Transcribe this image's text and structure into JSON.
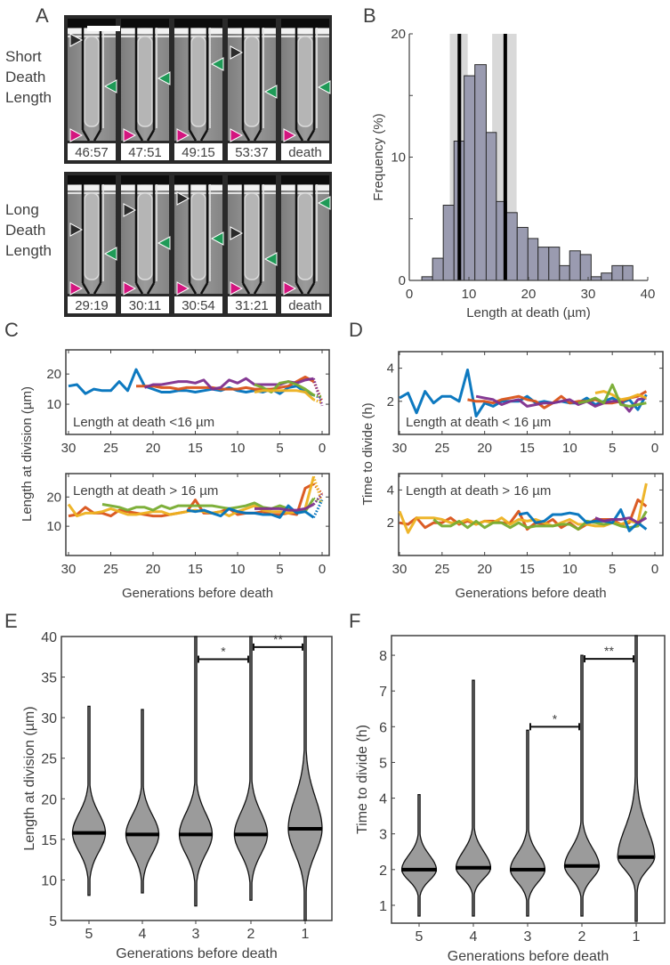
{
  "panel_labels": [
    "A",
    "B",
    "C",
    "D",
    "E",
    "F"
  ],
  "panel_a": {
    "rows": [
      {
        "label_lines": [
          "Short",
          "Death",
          "Length"
        ],
        "timestamps": [
          "46:57",
          "47:51",
          "49:15",
          "53:37",
          "death"
        ]
      },
      {
        "label_lines": [
          "Long",
          "Death",
          "Length"
        ],
        "timestamps": [
          "29:19",
          "30:11",
          "30:54",
          "31:21",
          "death"
        ]
      }
    ],
    "arrow_colors": {
      "black": "#2b2b2b",
      "green": "#1f9a57",
      "magenta": "#d4157f"
    }
  },
  "colors": {
    "blue": "#0072BD",
    "orange": "#D95319",
    "yellow": "#EDB120",
    "purple": "#7E2F8E",
    "green": "#77AC30",
    "bars": "#9a9bb0",
    "violin": "#9b9b9b",
    "band": "#d9d9d9"
  },
  "chart_data": [
    {
      "id": "B",
      "type": "bar",
      "xlabel": "Length at death (µm)",
      "ylabel": "Frequency (%)",
      "xlim": [
        0,
        40
      ],
      "ylim": [
        0,
        20
      ],
      "xticks": [
        "0",
        "10",
        "20",
        "30",
        "40"
      ],
      "yticks": [
        "0",
        "10",
        "20"
      ],
      "bin_edges": [
        2.1,
        3.9,
        5.7,
        7.5,
        9.2,
        11.0,
        12.9,
        14.6,
        16.3,
        18.1,
        19.9,
        21.6,
        23.4,
        25.2,
        26.9,
        28.7,
        30.5,
        32.2,
        34.0,
        35.8,
        37.5
      ],
      "values": [
        0.3,
        1.8,
        6.1,
        11.3,
        16.6,
        17.5,
        12.0,
        6.4,
        5.5,
        4.3,
        3.4,
        2.7,
        2.7,
        1.2,
        2.4,
        2.1,
        0.3,
        0.6,
        1.2,
        1.2
      ],
      "vertical_lines": [
        8.4,
        16.1
      ],
      "shaded_bands": [
        [
          6.8,
          9.8
        ],
        [
          13.9,
          18.0
        ]
      ],
      "grid": false
    },
    {
      "id": "C-top",
      "type": "line",
      "annotation": "Length at death <16 µm",
      "xlim": [
        30,
        0
      ],
      "ylim": [
        0,
        28
      ],
      "xticks": [
        "30",
        "25",
        "20",
        "15",
        "10",
        "5",
        "0"
      ],
      "yticks": [
        "10",
        "20"
      ],
      "series": [
        {
          "color": "blue",
          "x_start": 30,
          "values": [
            16,
            16.5,
            13.5,
            15,
            14.5,
            14.5,
            17.5,
            14.5,
            21.5,
            16,
            15,
            14,
            14,
            14.5,
            14.5,
            14,
            14.5,
            15,
            14.5,
            15.5,
            14.5,
            14,
            14.5,
            14,
            15,
            13.5,
            15.5,
            16,
            14,
            13
          ],
          "dotted_end": 12
        },
        {
          "color": "orange",
          "x_start": 22,
          "values": [
            16,
            16,
            16,
            15.5,
            15.5,
            15,
            15.5,
            15.5,
            15.5,
            15.5,
            15,
            15,
            15,
            15.5,
            15,
            15,
            15,
            15.5,
            16,
            17.5,
            19,
            17.5
          ],
          "dotted_end": 11
        },
        {
          "color": "purple",
          "x_start": 21,
          "values": [
            15.5,
            16.5,
            16.5,
            17,
            17.5,
            17.5,
            17,
            18,
            15,
            15.5,
            18,
            17,
            18.5,
            16.5,
            16.5,
            16.5,
            16.5,
            17.5,
            17,
            18,
            18.5
          ],
          "dotted_end": 9.5
        },
        {
          "color": "green",
          "x_start": 8,
          "values": [
            16.5,
            15.5,
            14,
            17,
            17.5,
            16.5,
            15,
            13
          ],
          "dotted_end": 12.5
        },
        {
          "color": "yellow",
          "x_start": 8,
          "values": [
            14,
            14.5,
            14.5,
            14.5,
            14.5,
            14.5,
            14,
            11.5
          ],
          "dotted_end": 10.5
        }
      ]
    },
    {
      "id": "C-bottom",
      "type": "line",
      "annotation": "Length at death > 16 µm",
      "xlabel": "Generations before death",
      "ylabel": "Length at division (µm)",
      "xlim": [
        30,
        0
      ],
      "ylim": [
        0,
        28
      ],
      "xticks": [
        "30",
        "25",
        "20",
        "15",
        "10",
        "5",
        "0"
      ],
      "yticks": [
        "10",
        "20"
      ],
      "series": [
        {
          "color": "orange",
          "x_start": 30,
          "values": [
            13.5,
            14,
            16.5,
            14.5,
            14.5,
            13.5,
            15.5,
            15,
            14.5,
            14,
            13.5,
            13.5,
            14,
            14.5,
            15,
            19,
            14.5,
            14.5,
            15,
            16,
            14,
            14.5,
            14.5,
            15,
            14,
            14,
            14.5,
            14,
            23,
            24.5
          ],
          "dotted_end": 21
        },
        {
          "color": "yellow",
          "x_start": 30,
          "values": [
            17.5,
            13.5,
            14.5,
            14.5,
            15,
            16,
            15,
            14,
            14,
            14.5,
            15,
            15,
            14,
            14.5,
            15,
            15.5,
            15,
            14.5,
            15,
            13.5,
            15,
            16,
            17,
            15.5,
            15,
            15,
            14.5,
            15,
            16,
            27
          ],
          "dotted_end": 18
        },
        {
          "color": "green",
          "x_start": 26,
          "values": [
            17.5,
            17,
            16.5,
            15.5,
            16.5,
            16.5,
            15.5,
            17,
            16,
            17,
            17,
            17,
            17,
            17,
            16.5,
            16,
            16.5,
            17,
            18,
            16.5,
            16,
            17,
            16,
            15,
            15,
            19.5
          ],
          "dotted_end": 18
        },
        {
          "color": "blue",
          "x_start": 16,
          "values": [
            15.5,
            15,
            15.5,
            14.5,
            13.5,
            16,
            15,
            14.5,
            14.5,
            14,
            14,
            13,
            17,
            14.5,
            15,
            13
          ],
          "dotted_end": 19
        },
        {
          "color": "purple",
          "x_start": 8,
          "values": [
            16,
            16,
            16,
            16,
            15.5,
            15.5,
            16,
            17.5
          ],
          "dotted_end": 21
        }
      ]
    },
    {
      "id": "D-top",
      "type": "line",
      "annotation": "Length at death < 16 µm",
      "xlim": [
        30,
        0
      ],
      "ylim": [
        0,
        5
      ],
      "xticks": [
        "30",
        "25",
        "20",
        "15",
        "10",
        "5",
        "0"
      ],
      "yticks": [
        "2",
        "4"
      ],
      "series": [
        {
          "color": "blue",
          "x_start": 30,
          "values": [
            2.2,
            2.5,
            1.3,
            2.6,
            1.9,
            2.3,
            2.3,
            2.0,
            3.9,
            1.1,
            1.9,
            1.7,
            2.0,
            2.0,
            2.0,
            2.3,
            1.9,
            2.0,
            1.9,
            2.0,
            1.9,
            1.9,
            2.2,
            1.8,
            2.0,
            2.2,
            1.9,
            2.1,
            1.5,
            2.4
          ]
        },
        {
          "color": "orange",
          "x_start": 22,
          "values": [
            2.1,
            2.0,
            2.0,
            1.9,
            2.1,
            2.2,
            2.3,
            2.1,
            2.0,
            1.6,
            1.9,
            2.3,
            1.9,
            2.0,
            2.0,
            2.1,
            1.9,
            1.9,
            2.0,
            2.2,
            2.3,
            2.6
          ]
        },
        {
          "color": "purple",
          "x_start": 21,
          "values": [
            2.3,
            2.2,
            2.1,
            1.8,
            2.0,
            2.1,
            1.7,
            1.8,
            1.9,
            1.9,
            2.0,
            2.1,
            1.8,
            2.0,
            1.7,
            1.9,
            2.0,
            2.0,
            1.4,
            2.1,
            2.2
          ]
        },
        {
          "color": "yellow",
          "x_start": 7,
          "values": [
            2.5,
            2.6,
            2.4,
            2.1,
            2.2,
            2.4,
            2.2
          ]
        },
        {
          "color": "green",
          "x_start": 9,
          "values": [
            1.9,
            2.0,
            2.2,
            1.9,
            3.0,
            1.8,
            1.7,
            1.8,
            1.9
          ]
        }
      ]
    },
    {
      "id": "D-bottom",
      "type": "line",
      "annotation": "Length at death > 16 µm",
      "xlabel": "Generations before death",
      "ylabel": "Time to divide (h)",
      "xlim": [
        30,
        0
      ],
      "ylim": [
        0,
        5
      ],
      "xticks": [
        "30",
        "25",
        "20",
        "15",
        "10",
        "5",
        "0"
      ],
      "yticks": [
        "2",
        "4"
      ],
      "series": [
        {
          "color": "orange",
          "x_start": 30,
          "values": [
            2.0,
            1.9,
            2.3,
            1.7,
            2.0,
            2.0,
            2.3,
            1.9,
            2.1,
            1.9,
            2.1,
            2.1,
            2.0,
            2.0,
            2.7,
            1.6,
            2.0,
            1.9,
            2.2,
            1.7,
            2.0,
            1.6,
            1.9,
            2.2,
            2.2,
            2.2,
            1.9,
            2.0,
            3.4,
            3.0
          ]
        },
        {
          "color": "yellow",
          "x_start": 30,
          "values": [
            2.7,
            1.4,
            2.3,
            2.3,
            2.3,
            2.2,
            2.0,
            2.0,
            2.2,
            1.9,
            2.1,
            2.0,
            2.3,
            1.9,
            2.2,
            2.1,
            2.2,
            2.0,
            1.8,
            2.0,
            2.2,
            1.9,
            1.9,
            1.8,
            1.8,
            2.0,
            1.9,
            2.1,
            2.0,
            4.4
          ]
        },
        {
          "color": "green",
          "x_start": 26,
          "values": [
            2.2,
            1.8,
            1.8,
            2.1,
            1.7,
            2.1,
            1.7,
            2.0,
            2.0,
            1.7,
            2.0,
            1.7,
            1.8,
            1.8,
            1.8,
            1.9,
            1.9,
            1.6,
            2.1,
            2.0,
            1.9,
            2.0,
            1.8,
            1.7,
            1.8,
            2.7
          ]
        },
        {
          "color": "blue",
          "x_start": 16,
          "values": [
            2.5,
            2.6,
            2.0,
            2.1,
            2.5,
            2.5,
            2.6,
            2.5,
            2.0,
            2.1,
            2.1,
            2.0,
            2.8,
            1.5,
            2.0,
            1.6
          ]
        },
        {
          "color": "purple",
          "x_start": 7,
          "values": [
            2.3,
            2.1,
            2.2,
            2.2,
            2.3,
            2.0,
            2.3
          ]
        }
      ]
    },
    {
      "id": "E",
      "type": "violin",
      "xlabel": "Generations before death",
      "ylabel": "Length at division (µm)",
      "ylim": [
        5,
        40
      ],
      "categories": [
        "5",
        "4",
        "3",
        "2",
        "1"
      ],
      "yticks": [
        "5",
        "10",
        "15",
        "20",
        "25",
        "30",
        "35",
        "40"
      ],
      "medians": [
        15.8,
        15.6,
        15.6,
        15.6,
        16.3
      ],
      "ranges": [
        [
          8.1,
          31.4
        ],
        [
          8.4,
          31.0
        ],
        [
          6.8,
          40
        ],
        [
          7.5,
          40
        ],
        [
          5,
          40
        ]
      ],
      "significance": [
        {
          "between": [
            "3",
            "2"
          ],
          "label": "*",
          "y": 37.2
        },
        {
          "between": [
            "2",
            "1"
          ],
          "label": "**",
          "y": 38.7
        }
      ]
    },
    {
      "id": "F",
      "type": "violin",
      "xlabel": "Generations before death",
      "ylabel": "Time to divide (h)",
      "ylim": [
        0.5,
        8.55
      ],
      "categories": [
        "5",
        "4",
        "3",
        "2",
        "1"
      ],
      "yticks": [
        "1",
        "2",
        "3",
        "4",
        "5",
        "6",
        "7",
        "8"
      ],
      "medians": [
        2.0,
        2.05,
        2.0,
        2.1,
        2.35
      ],
      "ranges": [
        [
          0.7,
          4.1
        ],
        [
          0.7,
          7.3
        ],
        [
          0.7,
          5.9
        ],
        [
          0.7,
          8.0
        ],
        [
          0.55,
          8.55
        ]
      ],
      "significance": [
        {
          "between": [
            "3",
            "2"
          ],
          "label": "*",
          "y": 6.0
        },
        {
          "between": [
            "2",
            "1"
          ],
          "label": "**",
          "y": 7.9
        }
      ]
    }
  ]
}
